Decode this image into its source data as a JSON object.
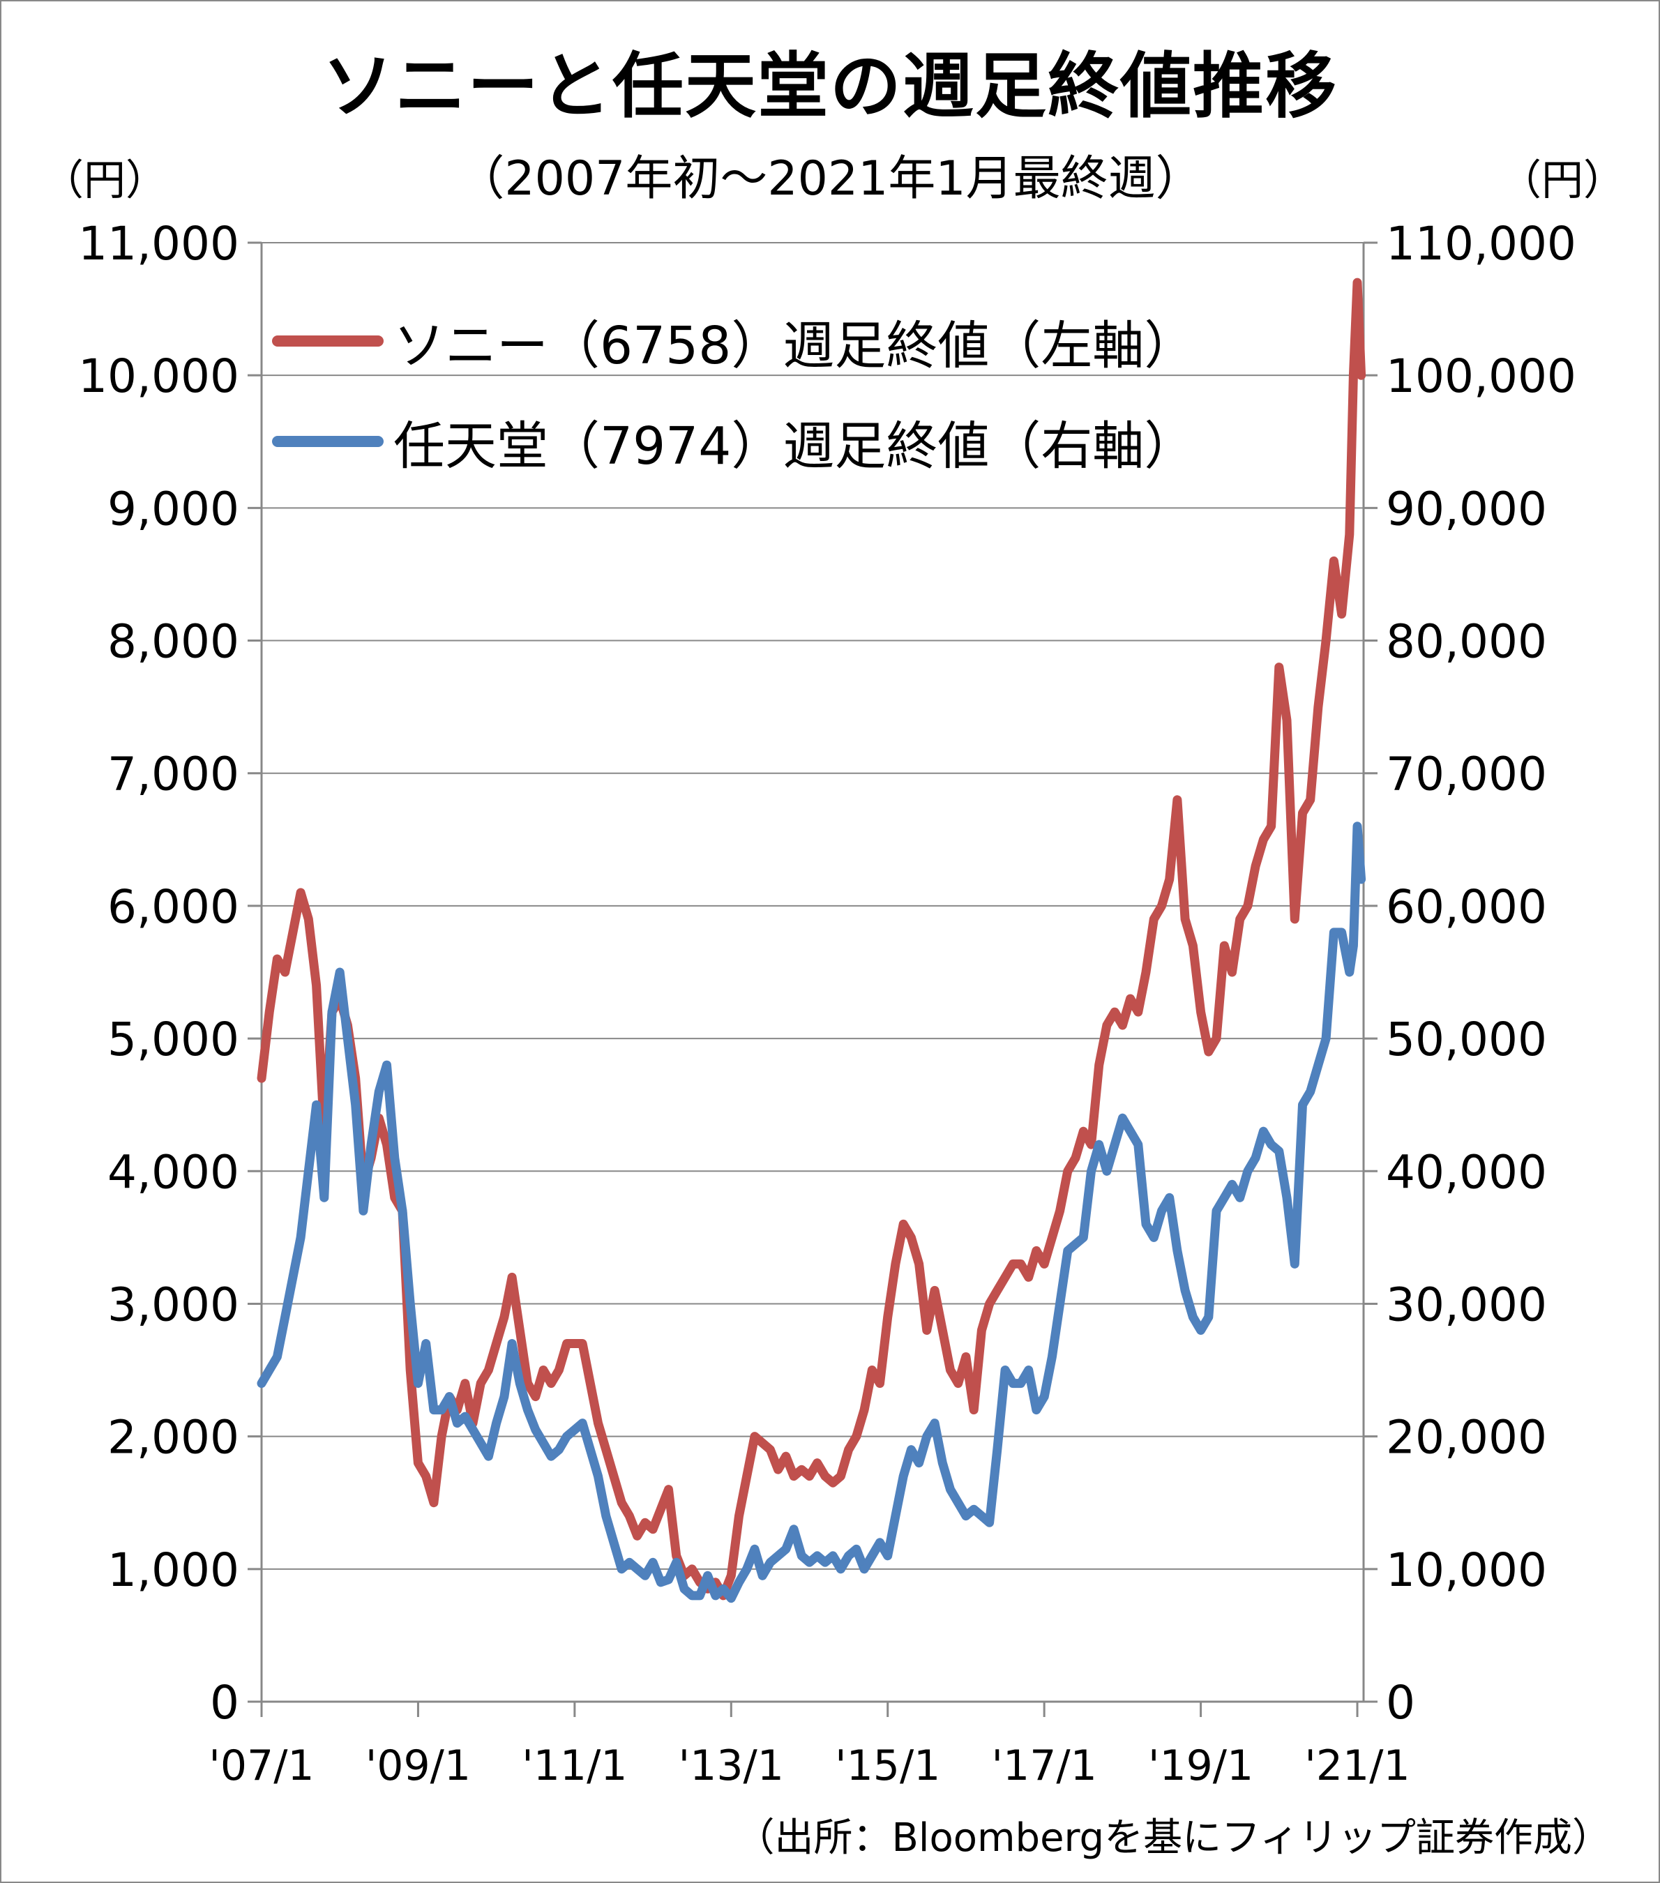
{
  "header": {
    "title": "ソニーと任天堂の週足終値推移",
    "subtitle": "（2007年初～2021年1月最終週）",
    "left_unit": "（円）",
    "right_unit": "（円）"
  },
  "footer": {
    "source": "（出所：Bloombergを基にフィリップ証券作成）"
  },
  "chart_data": {
    "type": "line",
    "title": "ソニーと任天堂の週足終値推移",
    "subtitle": "（2007年初～2021年1月最終週）",
    "x_start": "2007-01",
    "x_end": "2021-01",
    "x_ticks": [
      "'07/1",
      "'09/1",
      "'11/1",
      "'13/1",
      "'15/1",
      "'17/1",
      "'19/1",
      "'21/1"
    ],
    "x_tick_positions": [
      2007.0,
      2009.0,
      2011.0,
      2013.0,
      2015.0,
      2017.0,
      2019.0,
      2021.0
    ],
    "y_left": {
      "label": "（円）",
      "range": [
        0,
        11000
      ],
      "ticks": [
        "0",
        "1,000",
        "2,000",
        "3,000",
        "4,000",
        "5,000",
        "6,000",
        "7,000",
        "8,000",
        "9,000",
        "10,000",
        "11,000"
      ]
    },
    "y_right": {
      "label": "（円）",
      "range": [
        0,
        110000
      ],
      "ticks": [
        "0",
        "10,000",
        "20,000",
        "30,000",
        "40,000",
        "50,000",
        "60,000",
        "70,000",
        "80,000",
        "90,000",
        "100,000",
        "110,000"
      ]
    },
    "grid": true,
    "legend_position": "top-left",
    "series": [
      {
        "name": "ソニー（6758）週足終値（左軸）",
        "axis": "left",
        "color": "#c0504d",
        "points": [
          [
            2007.0,
            4700
          ],
          [
            2007.1,
            5200
          ],
          [
            2007.2,
            5600
          ],
          [
            2007.3,
            5500
          ],
          [
            2007.4,
            5800
          ],
          [
            2007.5,
            6100
          ],
          [
            2007.6,
            5900
          ],
          [
            2007.7,
            5400
          ],
          [
            2007.8,
            4300
          ],
          [
            2007.9,
            5200
          ],
          [
            2008.0,
            5300
          ],
          [
            2008.1,
            5100
          ],
          [
            2008.2,
            4700
          ],
          [
            2008.3,
            3900
          ],
          [
            2008.4,
            4100
          ],
          [
            2008.5,
            4400
          ],
          [
            2008.6,
            4200
          ],
          [
            2008.7,
            3800
          ],
          [
            2008.8,
            3700
          ],
          [
            2008.9,
            2500
          ],
          [
            2009.0,
            1800
          ],
          [
            2009.1,
            1700
          ],
          [
            2009.2,
            1500
          ],
          [
            2009.3,
            2000
          ],
          [
            2009.4,
            2300
          ],
          [
            2009.5,
            2200
          ],
          [
            2009.6,
            2400
          ],
          [
            2009.7,
            2100
          ],
          [
            2009.8,
            2400
          ],
          [
            2009.9,
            2500
          ],
          [
            2010.0,
            2700
          ],
          [
            2010.1,
            2900
          ],
          [
            2010.2,
            3200
          ],
          [
            2010.3,
            2800
          ],
          [
            2010.4,
            2400
          ],
          [
            2010.5,
            2300
          ],
          [
            2010.6,
            2500
          ],
          [
            2010.7,
            2400
          ],
          [
            2010.8,
            2500
          ],
          [
            2010.9,
            2700
          ],
          [
            2011.0,
            2700
          ],
          [
            2011.1,
            2700
          ],
          [
            2011.2,
            2400
          ],
          [
            2011.3,
            2100
          ],
          [
            2011.4,
            1900
          ],
          [
            2011.5,
            1700
          ],
          [
            2011.6,
            1500
          ],
          [
            2011.7,
            1400
          ],
          [
            2011.8,
            1250
          ],
          [
            2011.9,
            1350
          ],
          [
            2012.0,
            1300
          ],
          [
            2012.1,
            1450
          ],
          [
            2012.2,
            1600
          ],
          [
            2012.3,
            1100
          ],
          [
            2012.4,
            950
          ],
          [
            2012.5,
            1000
          ],
          [
            2012.6,
            900
          ],
          [
            2012.7,
            850
          ],
          [
            2012.8,
            900
          ],
          [
            2012.9,
            800
          ],
          [
            2013.0,
            950
          ],
          [
            2013.1,
            1400
          ],
          [
            2013.2,
            1700
          ],
          [
            2013.3,
            2000
          ],
          [
            2013.4,
            1950
          ],
          [
            2013.5,
            1900
          ],
          [
            2013.6,
            1750
          ],
          [
            2013.7,
            1850
          ],
          [
            2013.8,
            1700
          ],
          [
            2013.9,
            1750
          ],
          [
            2014.0,
            1700
          ],
          [
            2014.1,
            1800
          ],
          [
            2014.2,
            1700
          ],
          [
            2014.3,
            1650
          ],
          [
            2014.4,
            1700
          ],
          [
            2014.5,
            1900
          ],
          [
            2014.6,
            2000
          ],
          [
            2014.7,
            2200
          ],
          [
            2014.8,
            2500
          ],
          [
            2014.9,
            2400
          ],
          [
            2015.0,
            2900
          ],
          [
            2015.1,
            3300
          ],
          [
            2015.2,
            3600
          ],
          [
            2015.3,
            3500
          ],
          [
            2015.4,
            3300
          ],
          [
            2015.5,
            2800
          ],
          [
            2015.6,
            3100
          ],
          [
            2015.7,
            2800
          ],
          [
            2015.8,
            2500
          ],
          [
            2015.9,
            2400
          ],
          [
            2016.0,
            2600
          ],
          [
            2016.1,
            2200
          ],
          [
            2016.2,
            2800
          ],
          [
            2016.3,
            3000
          ],
          [
            2016.4,
            3100
          ],
          [
            2016.5,
            3200
          ],
          [
            2016.6,
            3300
          ],
          [
            2016.7,
            3300
          ],
          [
            2016.8,
            3200
          ],
          [
            2016.9,
            3400
          ],
          [
            2017.0,
            3300
          ],
          [
            2017.1,
            3500
          ],
          [
            2017.2,
            3700
          ],
          [
            2017.3,
            4000
          ],
          [
            2017.4,
            4100
          ],
          [
            2017.5,
            4300
          ],
          [
            2017.6,
            4200
          ],
          [
            2017.7,
            4800
          ],
          [
            2017.8,
            5100
          ],
          [
            2017.9,
            5200
          ],
          [
            2018.0,
            5100
          ],
          [
            2018.1,
            5300
          ],
          [
            2018.2,
            5200
          ],
          [
            2018.3,
            5500
          ],
          [
            2018.4,
            5900
          ],
          [
            2018.5,
            6000
          ],
          [
            2018.6,
            6200
          ],
          [
            2018.7,
            6800
          ],
          [
            2018.8,
            5900
          ],
          [
            2018.9,
            5700
          ],
          [
            2019.0,
            5200
          ],
          [
            2019.1,
            4900
          ],
          [
            2019.2,
            5000
          ],
          [
            2019.3,
            5700
          ],
          [
            2019.4,
            5500
          ],
          [
            2019.5,
            5900
          ],
          [
            2019.6,
            6000
          ],
          [
            2019.7,
            6300
          ],
          [
            2019.8,
            6500
          ],
          [
            2019.9,
            6600
          ],
          [
            2020.0,
            7800
          ],
          [
            2020.1,
            7400
          ],
          [
            2020.2,
            5900
          ],
          [
            2020.3,
            6700
          ],
          [
            2020.4,
            6800
          ],
          [
            2020.5,
            7500
          ],
          [
            2020.6,
            8000
          ],
          [
            2020.7,
            8600
          ],
          [
            2020.8,
            8200
          ],
          [
            2020.9,
            8800
          ],
          [
            2020.95,
            10000
          ],
          [
            2021.0,
            10700
          ],
          [
            2021.05,
            10000
          ]
        ]
      },
      {
        "name": "任天堂（7974）週足終値（右軸）",
        "axis": "right",
        "color": "#4f81bd",
        "points": [
          [
            2007.0,
            24000
          ],
          [
            2007.1,
            25000
          ],
          [
            2007.2,
            26000
          ],
          [
            2007.3,
            29000
          ],
          [
            2007.4,
            32000
          ],
          [
            2007.5,
            35000
          ],
          [
            2007.6,
            40000
          ],
          [
            2007.7,
            45000
          ],
          [
            2007.8,
            38000
          ],
          [
            2007.9,
            52000
          ],
          [
            2008.0,
            55000
          ],
          [
            2008.1,
            50000
          ],
          [
            2008.2,
            45000
          ],
          [
            2008.3,
            37000
          ],
          [
            2008.4,
            42000
          ],
          [
            2008.5,
            46000
          ],
          [
            2008.6,
            48000
          ],
          [
            2008.7,
            41000
          ],
          [
            2008.8,
            37000
          ],
          [
            2008.9,
            30000
          ],
          [
            2009.0,
            24000
          ],
          [
            2009.1,
            27000
          ],
          [
            2009.2,
            22000
          ],
          [
            2009.3,
            22000
          ],
          [
            2009.4,
            23000
          ],
          [
            2009.5,
            21000
          ],
          [
            2009.6,
            21500
          ],
          [
            2009.7,
            20500
          ],
          [
            2009.8,
            19500
          ],
          [
            2009.9,
            18500
          ],
          [
            2010.0,
            21000
          ],
          [
            2010.1,
            23000
          ],
          [
            2010.2,
            27000
          ],
          [
            2010.3,
            24000
          ],
          [
            2010.4,
            22000
          ],
          [
            2010.5,
            20500
          ],
          [
            2010.6,
            19500
          ],
          [
            2010.7,
            18500
          ],
          [
            2010.8,
            19000
          ],
          [
            2010.9,
            20000
          ],
          [
            2011.0,
            20500
          ],
          [
            2011.1,
            21000
          ],
          [
            2011.2,
            19000
          ],
          [
            2011.3,
            17000
          ],
          [
            2011.4,
            14000
          ],
          [
            2011.5,
            12000
          ],
          [
            2011.6,
            10000
          ],
          [
            2011.7,
            10500
          ],
          [
            2011.8,
            10000
          ],
          [
            2011.9,
            9500
          ],
          [
            2012.0,
            10500
          ],
          [
            2012.1,
            9000
          ],
          [
            2012.2,
            9200
          ],
          [
            2012.3,
            10500
          ],
          [
            2012.4,
            8500
          ],
          [
            2012.5,
            8000
          ],
          [
            2012.6,
            8000
          ],
          [
            2012.7,
            9500
          ],
          [
            2012.8,
            8000
          ],
          [
            2012.9,
            8500
          ],
          [
            2013.0,
            7800
          ],
          [
            2013.1,
            9000
          ],
          [
            2013.2,
            10000
          ],
          [
            2013.3,
            11500
          ],
          [
            2013.4,
            9500
          ],
          [
            2013.5,
            10500
          ],
          [
            2013.6,
            11000
          ],
          [
            2013.7,
            11500
          ],
          [
            2013.8,
            13000
          ],
          [
            2013.9,
            11000
          ],
          [
            2014.0,
            10500
          ],
          [
            2014.1,
            11000
          ],
          [
            2014.2,
            10500
          ],
          [
            2014.3,
            11000
          ],
          [
            2014.4,
            10000
          ],
          [
            2014.5,
            11000
          ],
          [
            2014.6,
            11500
          ],
          [
            2014.7,
            10000
          ],
          [
            2014.8,
            11000
          ],
          [
            2014.9,
            12000
          ],
          [
            2015.0,
            11000
          ],
          [
            2015.1,
            14000
          ],
          [
            2015.2,
            17000
          ],
          [
            2015.3,
            19000
          ],
          [
            2015.4,
            18000
          ],
          [
            2015.5,
            20000
          ],
          [
            2015.6,
            21000
          ],
          [
            2015.7,
            18000
          ],
          [
            2015.8,
            16000
          ],
          [
            2015.9,
            15000
          ],
          [
            2016.0,
            14000
          ],
          [
            2016.1,
            14500
          ],
          [
            2016.2,
            14000
          ],
          [
            2016.3,
            13500
          ],
          [
            2016.4,
            19000
          ],
          [
            2016.5,
            25000
          ],
          [
            2016.6,
            24000
          ],
          [
            2016.7,
            24000
          ],
          [
            2016.8,
            25000
          ],
          [
            2016.9,
            22000
          ],
          [
            2017.0,
            23000
          ],
          [
            2017.1,
            26000
          ],
          [
            2017.2,
            30000
          ],
          [
            2017.3,
            34000
          ],
          [
            2017.4,
            34500
          ],
          [
            2017.5,
            35000
          ],
          [
            2017.6,
            40000
          ],
          [
            2017.7,
            42000
          ],
          [
            2017.8,
            40000
          ],
          [
            2017.9,
            42000
          ],
          [
            2018.0,
            44000
          ],
          [
            2018.1,
            43000
          ],
          [
            2018.2,
            42000
          ],
          [
            2018.3,
            36000
          ],
          [
            2018.4,
            35000
          ],
          [
            2018.5,
            37000
          ],
          [
            2018.6,
            38000
          ],
          [
            2018.7,
            34000
          ],
          [
            2018.8,
            31000
          ],
          [
            2018.9,
            29000
          ],
          [
            2019.0,
            28000
          ],
          [
            2019.1,
            29000
          ],
          [
            2019.2,
            37000
          ],
          [
            2019.3,
            38000
          ],
          [
            2019.4,
            39000
          ],
          [
            2019.5,
            38000
          ],
          [
            2019.6,
            40000
          ],
          [
            2019.7,
            41000
          ],
          [
            2019.8,
            43000
          ],
          [
            2019.9,
            42000
          ],
          [
            2020.0,
            41500
          ],
          [
            2020.1,
            38000
          ],
          [
            2020.2,
            33000
          ],
          [
            2020.3,
            45000
          ],
          [
            2020.4,
            46000
          ],
          [
            2020.5,
            48000
          ],
          [
            2020.6,
            50000
          ],
          [
            2020.7,
            58000
          ],
          [
            2020.8,
            58000
          ],
          [
            2020.9,
            55000
          ],
          [
            2020.95,
            57000
          ],
          [
            2021.0,
            66000
          ],
          [
            2021.05,
            62000
          ]
        ]
      }
    ]
  }
}
